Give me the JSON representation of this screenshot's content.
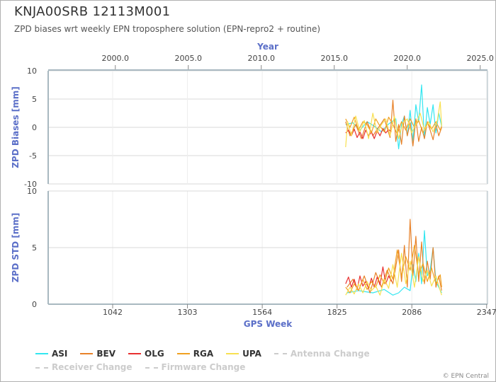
{
  "header": {
    "title": "KNJA00SRB 12113M001",
    "subtitle": "ZPD biases wrt weekly EPN troposphere solution (EPN-repro2 + routine)"
  },
  "footer": {
    "credit": "© EPN Central"
  },
  "colors": {
    "ASI": "#33e6f0",
    "BEV": "#e8822a",
    "OLG": "#e83030",
    "RGA": "#f0a020",
    "UPA": "#f8e050",
    "Antenna Change": "#cccccc",
    "Receiver Change": "#cccccc",
    "Firmware Change": "#cccccc",
    "axis_title": "#5b6fc8",
    "grid": "#d9d9d9",
    "frame": "#a8b8c0"
  },
  "legend": [
    {
      "label": "ASI",
      "style": "solid",
      "active": true
    },
    {
      "label": "BEV",
      "style": "solid",
      "active": true
    },
    {
      "label": "OLG",
      "style": "solid",
      "active": true
    },
    {
      "label": "RGA",
      "style": "solid",
      "active": true
    },
    {
      "label": "UPA",
      "style": "solid",
      "active": true
    },
    {
      "label": "Antenna Change",
      "style": "dashed",
      "active": false
    },
    {
      "label": "Receiver Change",
      "style": "dashed",
      "active": false
    },
    {
      "label": "Firmware Change",
      "style": "dashed",
      "active": false
    }
  ],
  "chart_data": [
    {
      "type": "line",
      "panel": "top",
      "ylabel": "ZPD Biases [mm]",
      "xlabel_top": "Year",
      "x_top_ticks": [
        "2000.0",
        "2005.0",
        "2010.0",
        "2015.0",
        "2020.0",
        "2025.0"
      ],
      "x_top_tick_values": [
        2000.0,
        2005.0,
        2010.0,
        2015.0,
        2020.0,
        2025.0
      ],
      "xlim_year": [
        1995.4,
        2025.5
      ],
      "ylim": [
        -10,
        10
      ],
      "y_ticks": [
        "10",
        "5",
        "0",
        "-5",
        "-10"
      ],
      "y_tick_values": [
        10,
        5,
        0,
        -5,
        -10
      ],
      "grid": true,
      "x_units": "GPS week",
      "series": [
        {
          "name": "ASI",
          "x": [
            1855,
            1880,
            1905,
            1930,
            1955,
            1980,
            2005,
            2030,
            2040,
            2050,
            2060,
            2070,
            2080,
            2090,
            2100,
            2110,
            2120,
            2130,
            2140,
            2150,
            2160,
            2170,
            2180,
            2190
          ],
          "values": [
            0.5,
            0.8,
            -0.5,
            1.0,
            0.2,
            -0.8,
            0.6,
            1.5,
            -3.8,
            0.5,
            2.0,
            -1.5,
            3.0,
            -2.5,
            4.0,
            1.0,
            7.5,
            -2.0,
            3.5,
            0.5,
            4.0,
            -1.0,
            2.5,
            0.2
          ]
        },
        {
          "name": "BEV",
          "x": [
            1855,
            1870,
            1890,
            1910,
            1930,
            1950,
            1970,
            1990,
            2010,
            2020,
            2030,
            2040,
            2050,
            2060,
            2070,
            2080,
            2090,
            2100,
            2110,
            2120,
            2130,
            2140,
            2150,
            2160,
            2170,
            2180,
            2190
          ],
          "values": [
            1.0,
            -1.5,
            0.5,
            -2.0,
            1.0,
            -1.5,
            0.0,
            1.5,
            -1.8,
            4.8,
            -2.5,
            0.5,
            -3.0,
            2.0,
            -1.5,
            0.8,
            -3.3,
            1.5,
            -2.5,
            0.0,
            -2.0,
            1.0,
            -0.5,
            -2.2,
            0.5,
            -1.5,
            0.0
          ]
        },
        {
          "name": "OLG",
          "x": [
            1855,
            1865,
            1875,
            1885,
            1895,
            1905,
            1915,
            1925,
            1935,
            1945,
            1955,
            1965,
            1975,
            1985,
            1995,
            2005,
            2015
          ],
          "values": [
            -1.0,
            -0.5,
            -1.5,
            -0.3,
            -1.8,
            -0.8,
            -2.0,
            -0.5,
            -1.5,
            -0.8,
            -2.0,
            -0.6,
            -1.5,
            -0.2,
            -1.0,
            -0.4,
            -0.8
          ]
        },
        {
          "name": "RGA",
          "x": [
            1855,
            1870,
            1885,
            1900,
            1915,
            1930,
            1945,
            1960,
            1975,
            1990,
            2005,
            2020,
            2035,
            2050,
            2065,
            2080,
            2095,
            2110,
            2125,
            2140,
            2155,
            2170,
            2185,
            2190
          ],
          "values": [
            1.5,
            0.0,
            1.8,
            -0.5,
            1.0,
            0.5,
            -1.0,
            1.5,
            0.2,
            -0.8,
            1.8,
            0.5,
            -1.2,
            1.0,
            -0.5,
            1.5,
            0.0,
            1.2,
            -1.0,
            0.8,
            -0.3,
            1.0,
            -0.5,
            0.2
          ]
        },
        {
          "name": "UPA",
          "x": [
            1855,
            1862,
            1875,
            1890,
            1905,
            1920,
            1935,
            1950,
            1965,
            1980,
            1995,
            2010,
            2025,
            2040,
            2055,
            2070,
            2085,
            2100,
            2115,
            2130,
            2145,
            2160,
            2175,
            2185,
            2190
          ],
          "values": [
            -3.5,
            1.0,
            -1.5,
            2.0,
            -0.8,
            1.2,
            -2.0,
            2.5,
            -1.0,
            0.5,
            1.5,
            -1.5,
            2.0,
            -2.0,
            0.8,
            1.5,
            -1.0,
            0.5,
            2.5,
            -0.5,
            1.0,
            -0.8,
            1.2,
            4.5,
            0.2
          ]
        }
      ]
    },
    {
      "type": "line",
      "panel": "bottom",
      "ylabel": "ZPD STD [mm]",
      "xlabel": "GPS Week",
      "x_ticks": [
        "1042",
        "1303",
        "1564",
        "1825",
        "2086",
        "2347"
      ],
      "x_tick_values": [
        1042,
        1303,
        1564,
        1825,
        2086,
        2347
      ],
      "xlim": [
        817,
        2350
      ],
      "ylim": [
        0,
        10
      ],
      "y_ticks": [
        "10",
        "5",
        "0"
      ],
      "y_tick_values": [
        10,
        5,
        0
      ],
      "grid": true,
      "series": [
        {
          "name": "ASI",
          "x": [
            1860,
            1900,
            1950,
            1990,
            2020,
            2040,
            2060,
            2080,
            2090,
            2100,
            2110,
            2120,
            2130,
            2140,
            2150,
            2160,
            2170,
            2180,
            2190
          ],
          "values": [
            1.0,
            1.2,
            1.0,
            1.3,
            0.8,
            1.0,
            1.5,
            1.2,
            3.5,
            2.0,
            4.5,
            1.8,
            6.5,
            2.5,
            3.0,
            5.0,
            2.0,
            1.5,
            1.0
          ]
        },
        {
          "name": "BEV",
          "x": [
            1860,
            1880,
            1900,
            1920,
            1940,
            1960,
            1980,
            2000,
            2020,
            2040,
            2050,
            2060,
            2070,
            2080,
            2090,
            2100,
            2110,
            2120,
            2130,
            2140,
            2150,
            2160,
            2170,
            2180,
            2190
          ],
          "values": [
            1.5,
            2.2,
            1.2,
            2.5,
            1.0,
            2.8,
            1.5,
            3.0,
            1.8,
            4.8,
            2.0,
            5.2,
            1.5,
            7.5,
            2.5,
            6.0,
            2.0,
            5.5,
            1.8,
            3.8,
            2.2,
            5.0,
            1.5,
            2.5,
            1.2
          ]
        },
        {
          "name": "OLG",
          "x": [
            1855,
            1865,
            1875,
            1885,
            1895,
            1905,
            1915,
            1925,
            1935,
            1945,
            1955,
            1965,
            1975,
            1985,
            1995,
            2005,
            2015
          ],
          "values": [
            1.8,
            2.4,
            1.5,
            2.2,
            1.3,
            2.5,
            1.6,
            2.0,
            1.4,
            2.3,
            1.5,
            2.4,
            1.7,
            3.3,
            1.8,
            2.5,
            2.0
          ]
        },
        {
          "name": "RGA",
          "x": [
            1855,
            1870,
            1885,
            1900,
            1915,
            1930,
            1945,
            1960,
            1975,
            1990,
            2005,
            2020,
            2035,
            2050,
            2065,
            2080,
            2095,
            2110,
            2125,
            2140,
            2155,
            2170,
            2185,
            2190
          ],
          "values": [
            1.5,
            1.0,
            1.8,
            1.2,
            2.2,
            1.3,
            2.0,
            1.5,
            2.6,
            1.8,
            3.2,
            2.2,
            4.8,
            2.5,
            4.2,
            3.0,
            5.2,
            2.6,
            3.6,
            2.0,
            3.2,
            1.8,
            2.6,
            1.5
          ]
        },
        {
          "name": "UPA",
          "x": [
            1855,
            1870,
            1885,
            1900,
            1915,
            1930,
            1945,
            1960,
            1975,
            1990,
            2005,
            2020,
            2035,
            2050,
            2065,
            2080,
            2095,
            2110,
            2125,
            2140,
            2155,
            2170,
            2185,
            2190
          ],
          "values": [
            0.8,
            1.5,
            0.9,
            1.8,
            1.0,
            2.0,
            1.2,
            1.6,
            0.8,
            2.2,
            1.4,
            3.5,
            1.5,
            4.5,
            1.8,
            3.8,
            1.5,
            4.2,
            2.0,
            3.0,
            1.6,
            2.5,
            1.2,
            0.8
          ]
        }
      ]
    }
  ]
}
